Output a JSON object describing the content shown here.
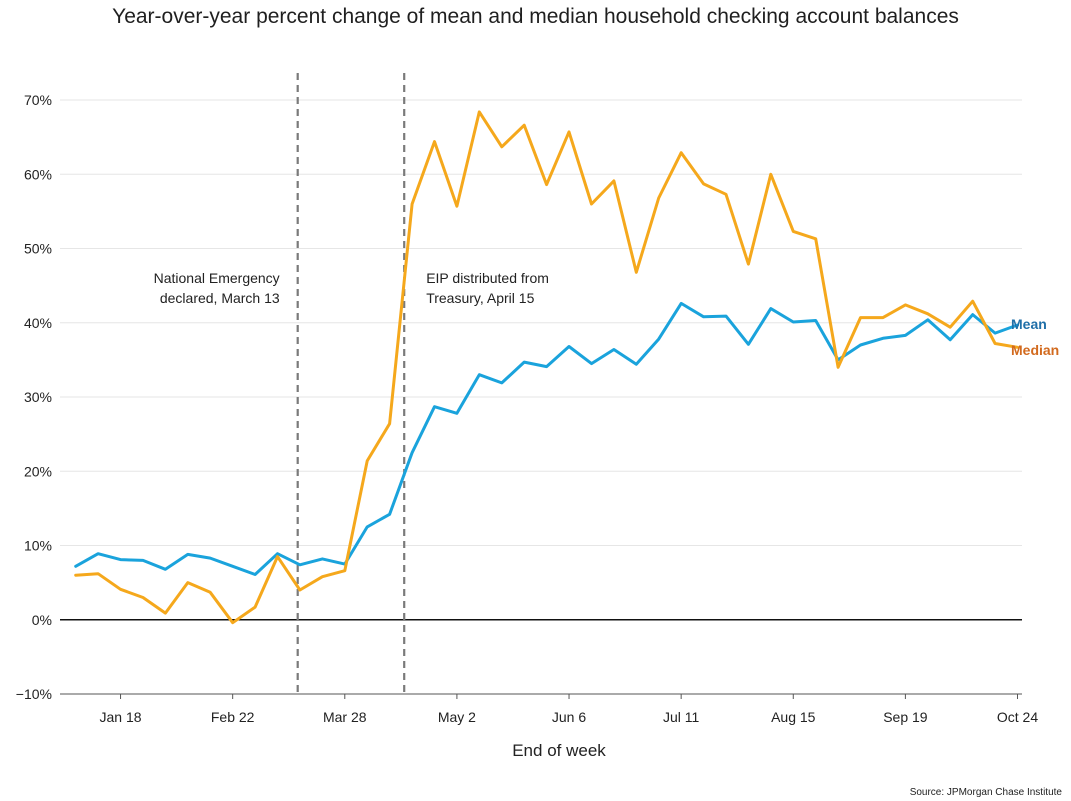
{
  "chart_data": {
    "type": "line",
    "title": "Year-over-year percent change of mean and median household checking account balances",
    "xlabel": "End of week",
    "ylabel": "",
    "source": "Source: JPMorgan Chase Institute",
    "ylim": [
      -10,
      70
    ],
    "yticks": [
      -10,
      0,
      10,
      20,
      30,
      40,
      50,
      60,
      70
    ],
    "ytick_labels": [
      "−10%",
      "0%",
      "10%",
      "20%",
      "30%",
      "40%",
      "50%",
      "60%",
      "70%"
    ],
    "xticks": [
      {
        "label": "Jan 18",
        "week": 3
      },
      {
        "label": "Feb 22",
        "week": 8
      },
      {
        "label": "Mar 28",
        "week": 13
      },
      {
        "label": "May 2",
        "week": 18
      },
      {
        "label": "Jun 6",
        "week": 23
      },
      {
        "label": "Jul 11",
        "week": 28
      },
      {
        "label": "Aug 15",
        "week": 33
      },
      {
        "label": "Sep 19",
        "week": 38
      },
      {
        "label": "Oct 24",
        "week": 43
      }
    ],
    "xlim": [
      0.3,
      43.2
    ],
    "x": [
      1,
      2,
      3,
      4,
      5,
      6,
      7,
      8,
      9,
      10,
      11,
      12,
      13,
      14,
      15,
      16,
      17,
      18,
      19,
      20,
      21,
      22,
      23,
      24,
      25,
      26,
      27,
      28,
      29,
      30,
      31,
      32,
      33,
      34,
      35,
      36,
      37,
      38,
      39,
      40,
      41,
      42,
      43
    ],
    "series": [
      {
        "name": "Mean",
        "color": "#1aa3dc",
        "label_color": "#1f6fa8",
        "values": [
          7.2,
          8.9,
          8.1,
          8.0,
          6.8,
          8.8,
          8.3,
          7.2,
          6.1,
          8.9,
          7.4,
          8.2,
          7.5,
          12.5,
          14.2,
          22.5,
          28.7,
          27.8,
          33.0,
          31.9,
          34.7,
          34.1,
          36.8,
          34.5,
          36.4,
          34.4,
          37.8,
          42.6,
          40.8,
          40.9,
          37.1,
          41.9,
          40.1,
          40.3,
          35.0,
          37.0,
          37.9,
          38.3,
          40.4,
          37.7,
          41.1,
          38.6,
          39.7
        ]
      },
      {
        "name": "Median",
        "color": "#f5a81c",
        "label_color": "#d26a1e",
        "values": [
          6.0,
          6.2,
          4.1,
          3.0,
          0.9,
          5.0,
          3.7,
          -0.4,
          1.7,
          8.5,
          4.0,
          5.8,
          6.6,
          21.4,
          26.4,
          56.0,
          64.4,
          55.7,
          68.4,
          63.7,
          66.6,
          58.6,
          65.7,
          56.0,
          59.1,
          46.8,
          56.8,
          62.9,
          58.7,
          57.3,
          47.9,
          60.0,
          52.3,
          51.3,
          34.0,
          40.7,
          40.7,
          42.4,
          41.2,
          39.4,
          42.9,
          37.2,
          36.7
        ]
      }
    ],
    "annotations": [
      {
        "lines": [
          "National Emergency",
          "declared, March 13"
        ],
        "week": 10.9
      },
      {
        "lines": [
          "EIP distributed from",
          "Treasury, April 15"
        ],
        "week": 15.65
      }
    ],
    "grid": true,
    "legend": "right, inline labels at line ends"
  }
}
